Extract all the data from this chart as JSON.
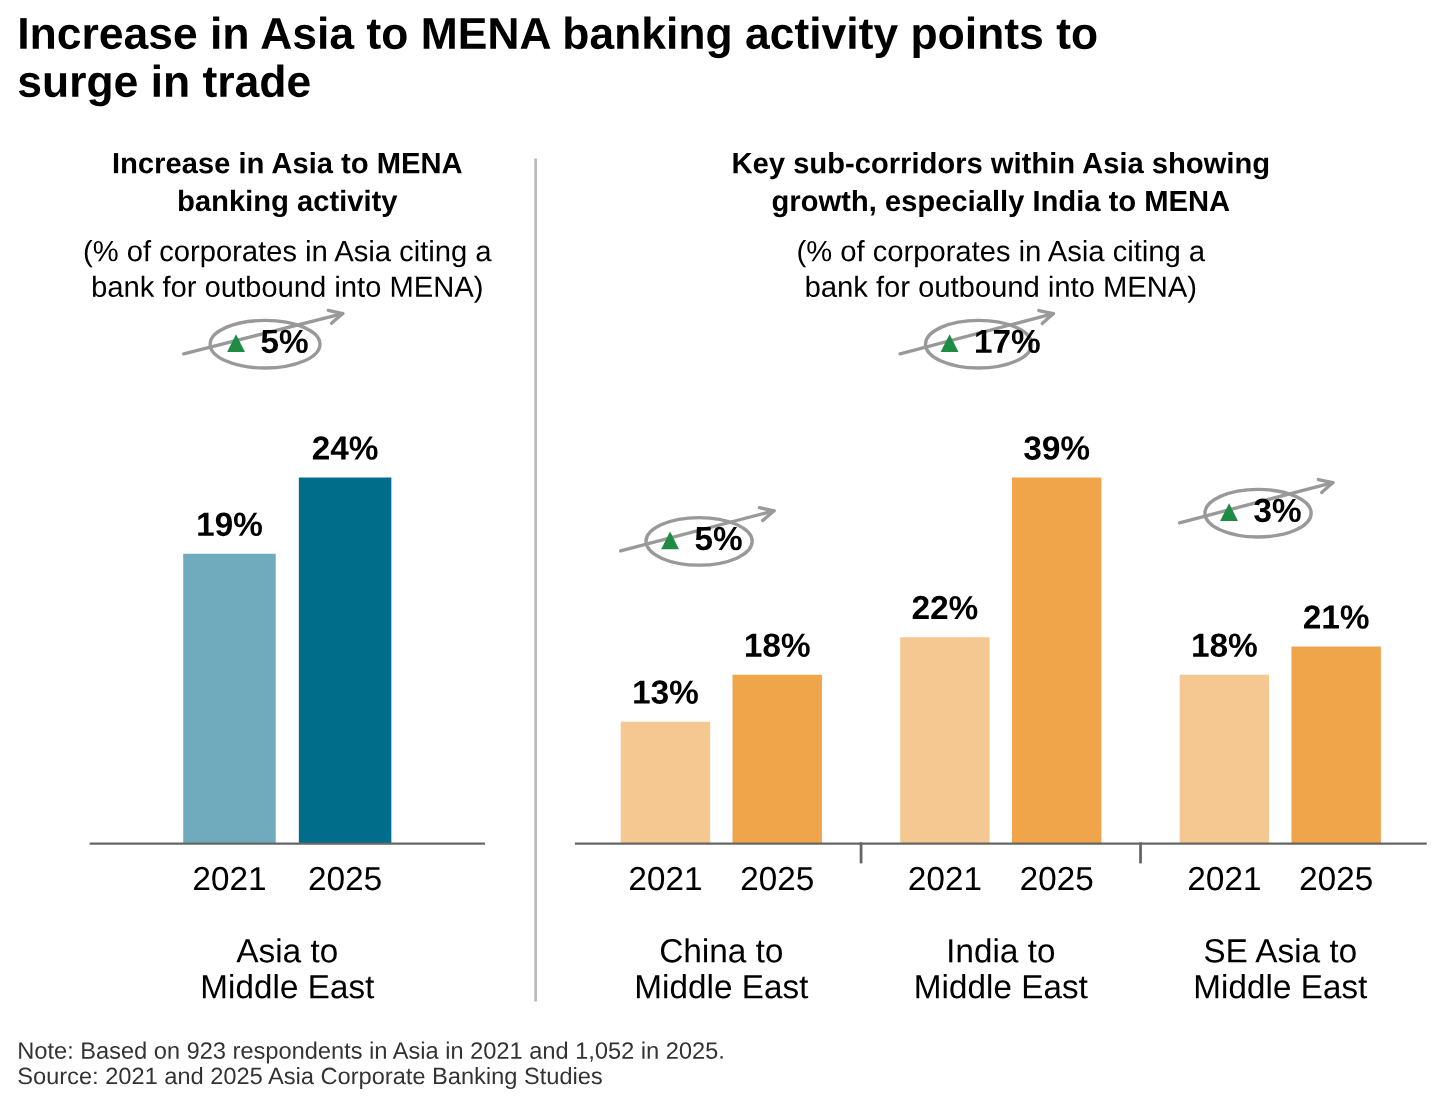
{
  "chart_data": [
    {
      "type": "bar",
      "title": "Increase in Asia to MENA\nbanking activity",
      "subtitle": "(% of corporates in Asia citing a\nbank for outbound into MENA)",
      "categories": [
        "2021",
        "2025"
      ],
      "values": [
        19,
        24
      ],
      "colors": [
        "#6fabbd",
        "#006e8a"
      ],
      "value_labels": [
        "19%",
        "24%"
      ],
      "grid": false,
      "legend": false,
      "annotations": [
        "▲ 5%",
        "Asia to\nMiddle East",
        "Increase in Asia to MENA banking activity points to\nsurge in trade",
        "Note: Based on 923 respondents in Asia in 2021 and 1,052 in 2025.\nSource: 2021 and 2025 Asia Corporate Banking Studies"
      ]
    },
    {
      "type": "bar",
      "title": "Key sub-corridors within Asia showing\ngrowth, especially India to MENA",
      "subtitle": "(% of corporates in Asia citing a\nbank for outbound into MENA)",
      "categories": [
        "2021",
        "2025",
        "2021",
        "2025",
        "2021",
        "2025"
      ],
      "values": [
        13,
        18,
        22,
        39,
        18,
        21
      ],
      "colors": [
        "#f5c892",
        "#f0a54a",
        "#f5c892",
        "#f0a54a",
        "#f5c892",
        "#f0a54a"
      ],
      "value_labels": [
        "13%",
        "18%",
        "22%",
        "39%",
        "18%",
        "21%"
      ],
      "grid": false,
      "legend": false,
      "annotations": [
        "▲ 5%",
        "▲ 17%",
        "▲ 3%",
        "China to\nMiddle East",
        "India to\nMiddle East",
        "SE Asia to\nMiddle East"
      ]
    }
  ]
}
